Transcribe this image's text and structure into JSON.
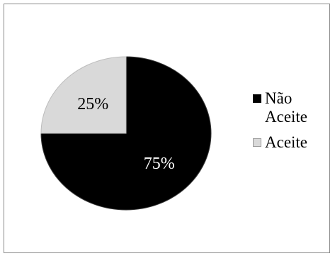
{
  "chart_data": {
    "type": "pie",
    "title": "",
    "slices": [
      {
        "label": "Não Aceite",
        "value": 75,
        "display": "75%",
        "color": "#000000",
        "text_color": "#ffffff"
      },
      {
        "label": "Aceite",
        "value": 25,
        "display": "25%",
        "color": "#d9d9d9",
        "text_color": "#000000"
      }
    ],
    "legend": {
      "placement": "right",
      "items": [
        {
          "label": "Não\nAceite",
          "color": "#000000"
        },
        {
          "label": "Aceite",
          "color": "#d9d9d9"
        }
      ]
    }
  }
}
